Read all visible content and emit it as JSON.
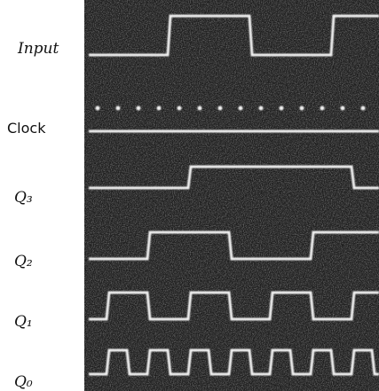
{
  "labels": {
    "input": "Input",
    "clock": "Clock",
    "q3": "Q₃",
    "q2": "Q₂",
    "q1": "Q₁",
    "q0": "Q₀"
  }
}
